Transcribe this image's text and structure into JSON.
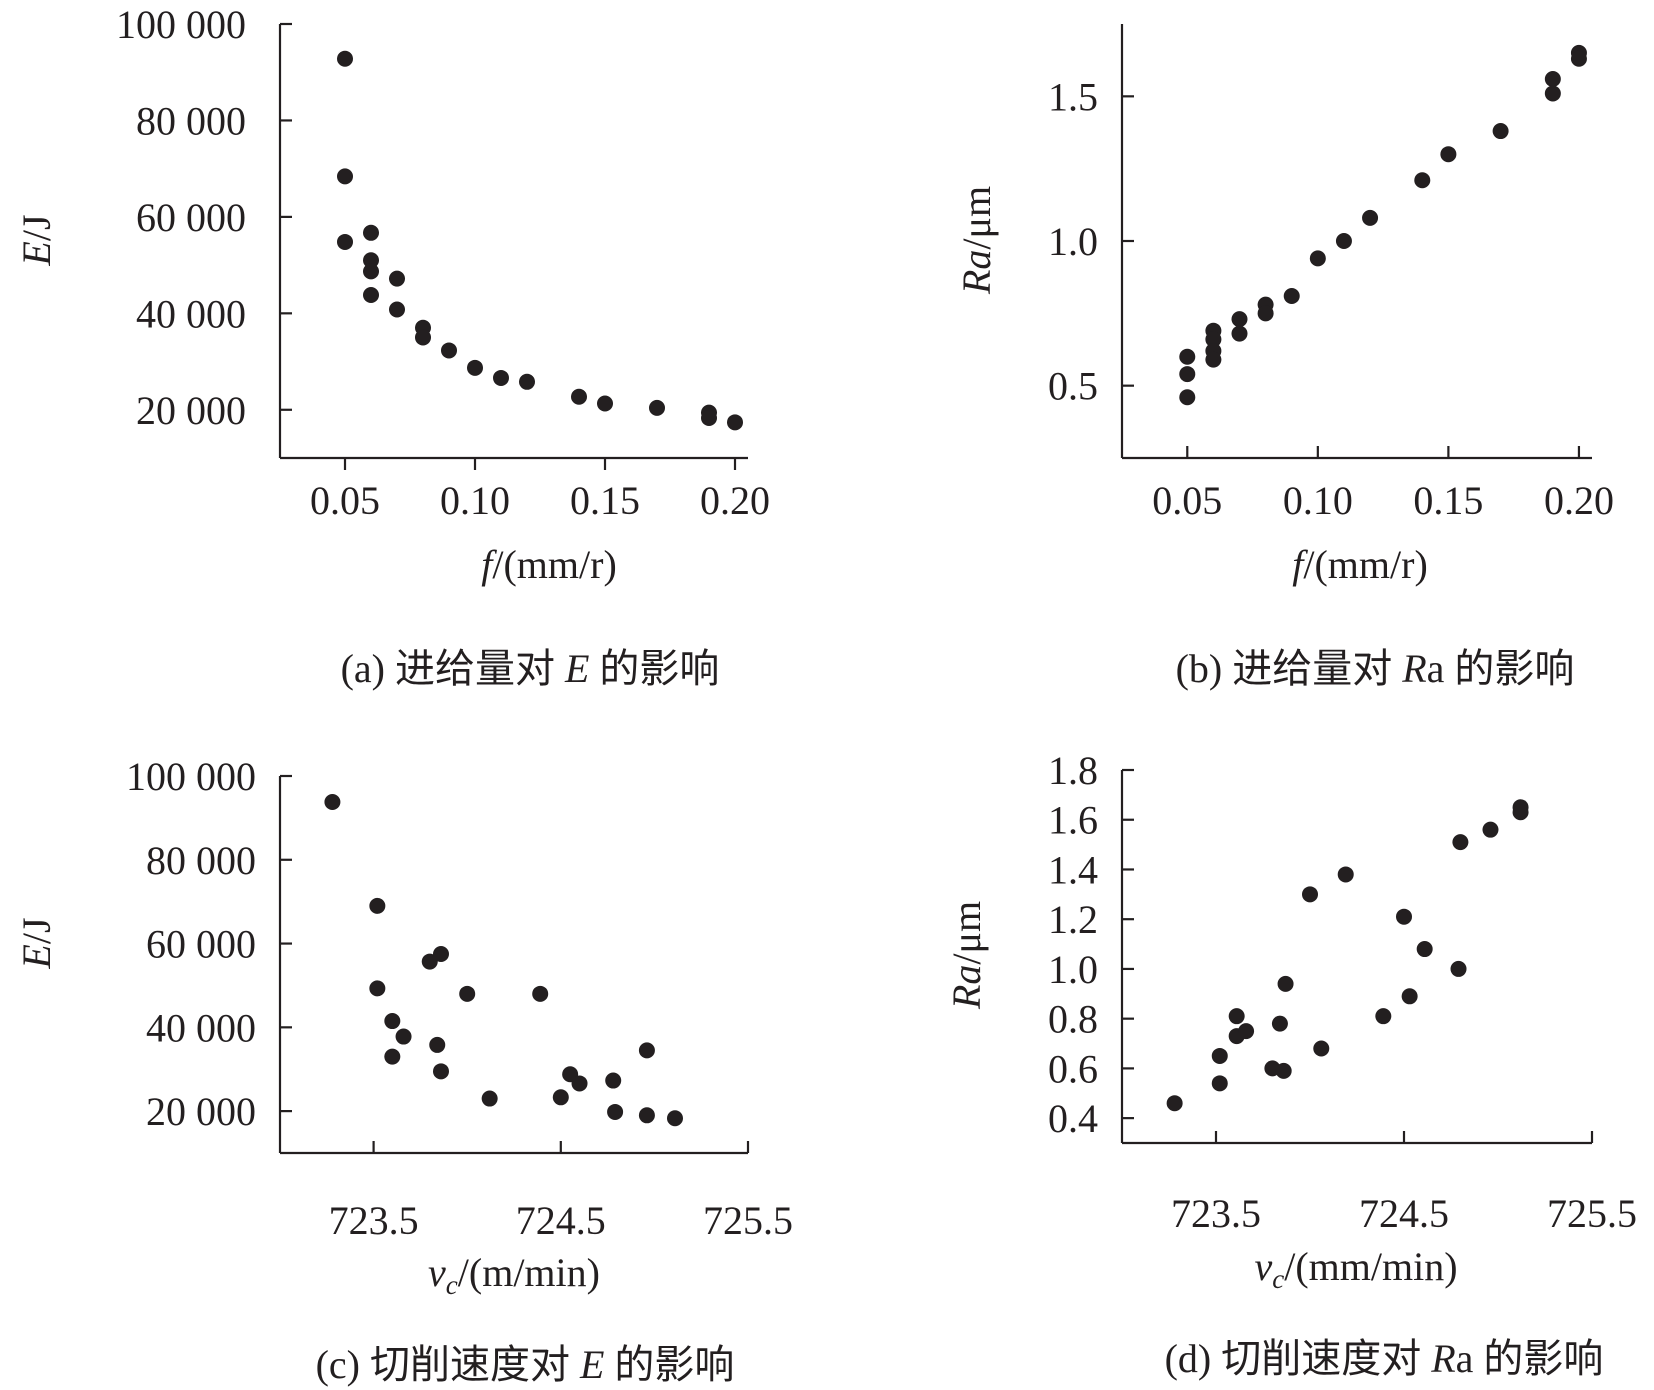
{
  "chart_data": [
    {
      "type": "scatter",
      "caption": "(a) 进给量对 E 的影响",
      "xlabel": "f/(mm/r)",
      "ylabel": "E/J",
      "xlim": [
        0.025,
        0.205
      ],
      "ylim": [
        10000,
        100000
      ],
      "xticks": [
        0.05,
        0.1,
        0.15,
        0.2
      ],
      "xtick_labels": [
        "0.05",
        "0.10",
        "0.15",
        "0.20"
      ],
      "yticks": [
        20000,
        40000,
        60000,
        80000,
        100000
      ],
      "ytick_labels": [
        "20 000",
        "40 000",
        "60 000",
        "80 000",
        "100 000"
      ],
      "points": [
        [
          0.05,
          92800
        ],
        [
          0.05,
          68400
        ],
        [
          0.05,
          54800
        ],
        [
          0.06,
          56700
        ],
        [
          0.06,
          51000
        ],
        [
          0.06,
          48700
        ],
        [
          0.06,
          43800
        ],
        [
          0.07,
          47200
        ],
        [
          0.07,
          40800
        ],
        [
          0.08,
          37000
        ],
        [
          0.08,
          35000
        ],
        [
          0.09,
          32300
        ],
        [
          0.1,
          28700
        ],
        [
          0.11,
          26600
        ],
        [
          0.12,
          25800
        ],
        [
          0.14,
          22700
        ],
        [
          0.15,
          21300
        ],
        [
          0.17,
          20400
        ],
        [
          0.19,
          19400
        ],
        [
          0.19,
          18300
        ],
        [
          0.2,
          17400
        ]
      ]
    },
    {
      "type": "scatter",
      "caption": "(b) 进给量对 Ra 的影响",
      "xlabel": "f/(mm/r)",
      "ylabel": "Ra/μm",
      "xlim": [
        0.025,
        0.205
      ],
      "ylim": [
        0.25,
        1.75
      ],
      "xticks": [
        0.05,
        0.1,
        0.15,
        0.2
      ],
      "xtick_labels": [
        "0.05",
        "0.10",
        "0.15",
        "0.20"
      ],
      "yticks": [
        0.5,
        1.0,
        1.5
      ],
      "ytick_labels": [
        "0.5",
        "1.0",
        "1.5"
      ],
      "points": [
        [
          0.05,
          0.6
        ],
        [
          0.05,
          0.54
        ],
        [
          0.05,
          0.46
        ],
        [
          0.06,
          0.69
        ],
        [
          0.06,
          0.66
        ],
        [
          0.06,
          0.62
        ],
        [
          0.06,
          0.59
        ],
        [
          0.07,
          0.73
        ],
        [
          0.07,
          0.68
        ],
        [
          0.08,
          0.78
        ],
        [
          0.08,
          0.75
        ],
        [
          0.09,
          0.81
        ],
        [
          0.1,
          0.94
        ],
        [
          0.11,
          1.0
        ],
        [
          0.12,
          1.08
        ],
        [
          0.14,
          1.21
        ],
        [
          0.15,
          1.3
        ],
        [
          0.17,
          1.38
        ],
        [
          0.19,
          1.56
        ],
        [
          0.19,
          1.51
        ],
        [
          0.2,
          1.65
        ],
        [
          0.2,
          1.63
        ]
      ]
    },
    {
      "type": "scatter",
      "caption": "(c) 切削速度对 E 的影响",
      "xlabel": "vc/(m/min)",
      "ylabel": "E/J",
      "xlim": [
        723.0,
        725.5
      ],
      "ylim": [
        10000,
        100000
      ],
      "xticks": [
        723.5,
        724.5,
        725.5
      ],
      "xtick_labels": [
        "723.5",
        "724.5",
        "725.5"
      ],
      "yticks": [
        20000,
        40000,
        60000,
        80000,
        100000
      ],
      "ytick_labels": [
        "20 000",
        "40 000",
        "60 000",
        "80 000",
        "100 000"
      ],
      "points": [
        [
          723.28,
          93800
        ],
        [
          723.52,
          69000
        ],
        [
          723.52,
          49300
        ],
        [
          723.6,
          41500
        ],
        [
          723.6,
          33000
        ],
        [
          723.66,
          37800
        ],
        [
          723.8,
          55700
        ],
        [
          723.84,
          35800
        ],
        [
          723.86,
          57500
        ],
        [
          723.86,
          29500
        ],
        [
          724.0,
          48000
        ],
        [
          724.12,
          23000
        ],
        [
          724.39,
          48000
        ],
        [
          724.5,
          23300
        ],
        [
          724.55,
          28800
        ],
        [
          724.6,
          26600
        ],
        [
          724.78,
          27300
        ],
        [
          724.79,
          19800
        ],
        [
          724.96,
          34500
        ],
        [
          724.96,
          19000
        ],
        [
          725.11,
          18300
        ]
      ]
    },
    {
      "type": "scatter",
      "caption": "(d) 切削速度对 Ra 的影响",
      "xlabel": "vc/(mm/min)",
      "ylabel": "Ra/μm",
      "xlim": [
        723.0,
        725.5
      ],
      "ylim": [
        0.3,
        1.8
      ],
      "xticks": [
        723.5,
        724.5,
        725.5
      ],
      "xtick_labels": [
        "723.5",
        "724.5",
        "725.5"
      ],
      "yticks": [
        0.4,
        0.6,
        0.8,
        1.0,
        1.2,
        1.4,
        1.6,
        1.8
      ],
      "ytick_labels": [
        "0.4",
        "0.6",
        "0.8",
        "1.0",
        "1.2",
        "1.4",
        "1.6",
        "1.8"
      ],
      "points": [
        [
          723.28,
          0.46
        ],
        [
          723.52,
          0.65
        ],
        [
          723.52,
          0.54
        ],
        [
          723.61,
          0.81
        ],
        [
          723.61,
          0.73
        ],
        [
          723.66,
          0.75
        ],
        [
          723.8,
          0.6
        ],
        [
          723.84,
          0.78
        ],
        [
          723.86,
          0.59
        ],
        [
          723.87,
          0.94
        ],
        [
          724.0,
          1.3
        ],
        [
          724.06,
          0.68
        ],
        [
          724.19,
          1.38
        ],
        [
          724.39,
          0.81
        ],
        [
          724.5,
          1.21
        ],
        [
          724.53,
          0.89
        ],
        [
          724.61,
          1.08
        ],
        [
          724.79,
          1.0
        ],
        [
          724.8,
          1.51
        ],
        [
          724.96,
          1.56
        ],
        [
          725.12,
          1.65
        ],
        [
          725.12,
          1.63
        ]
      ]
    }
  ]
}
